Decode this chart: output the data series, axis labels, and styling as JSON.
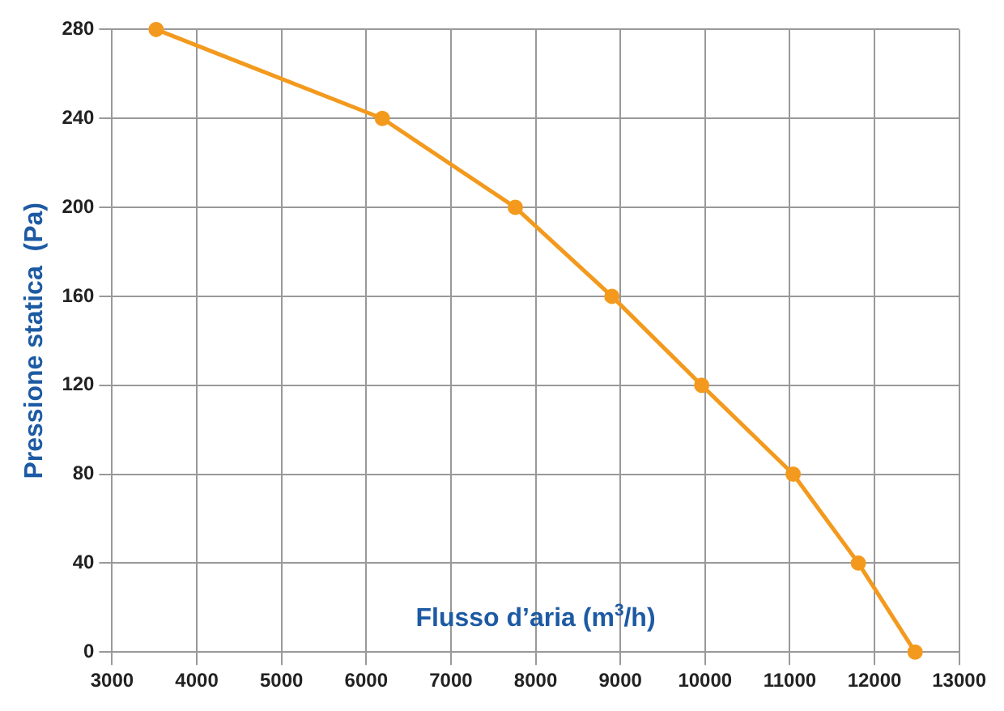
{
  "chart_data": {
    "type": "line",
    "xlabel": "Flusso d’aria (m$^{3}$/h)",
    "ylabel": "Pressione statica  (Pa)",
    "x": [
      3520,
      6190,
      7760,
      8900,
      9960,
      11040,
      11810,
      12480
    ],
    "series": [
      {
        "color": "#f39a1e",
        "values": [
          280,
          240,
          200,
          160,
          120,
          80,
          40,
          0
        ]
      }
    ],
    "xlim": [
      3000,
      13000
    ],
    "xticks": [
      3000,
      4000,
      5000,
      6000,
      7000,
      8000,
      9000,
      10000,
      11000,
      12000,
      13000
    ],
    "ylim": [
      0,
      280
    ],
    "yticks": [
      0,
      40,
      80,
      120,
      160,
      200,
      240,
      280
    ],
    "grid": true,
    "legend": false,
    "marker": "circle",
    "line_style": "solid"
  }
}
